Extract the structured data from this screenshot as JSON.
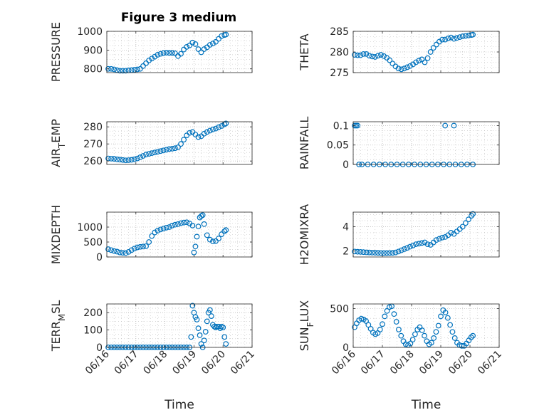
{
  "figure": {
    "title": "Figure 3 medium",
    "accent_color": "#0072bd",
    "axis_color": "#262626",
    "grid_color": "#bdbdbd"
  },
  "chart_data": [
    {
      "type": "scatter",
      "ylabel": "PRESSURE",
      "xlabel": "",
      "xlim": [
        0,
        5
      ],
      "ylim": [
        780,
        1000
      ],
      "yticks": [
        800,
        900,
        1000
      ],
      "ytick_labels": [
        "800",
        "900",
        "1000"
      ],
      "xtick_labels": [],
      "grid": true,
      "x": [
        0.05,
        0.15,
        0.25,
        0.35,
        0.45,
        0.55,
        0.65,
        0.75,
        0.85,
        0.95,
        1.05,
        1.15,
        1.25,
        1.35,
        1.45,
        1.55,
        1.65,
        1.75,
        1.85,
        1.95,
        2.05,
        2.15,
        2.25,
        2.35,
        2.45,
        2.55,
        2.65,
        2.75,
        2.85,
        2.95,
        3.05,
        3.15,
        3.25,
        3.35,
        3.45,
        3.55,
        3.65,
        3.75,
        3.85,
        3.95,
        4.05,
        4.1
      ],
      "y": [
        800,
        800,
        797,
        793,
        790,
        790,
        790,
        792,
        793,
        795,
        797,
        800,
        815,
        830,
        845,
        855,
        865,
        875,
        880,
        884,
        886,
        885,
        885,
        883,
        868,
        880,
        903,
        917,
        925,
        940,
        932,
        905,
        888,
        905,
        915,
        928,
        935,
        944,
        960,
        975,
        980,
        983
      ]
    },
    {
      "type": "scatter",
      "ylabel": "THETA",
      "xlabel": "",
      "xlim": [
        0,
        5
      ],
      "ylim": [
        275,
        285
      ],
      "yticks": [
        275,
        280,
        285
      ],
      "ytick_labels": [
        "275",
        "280",
        "285"
      ],
      "xtick_labels": [],
      "grid": true,
      "x": [
        0.05,
        0.15,
        0.25,
        0.35,
        0.45,
        0.55,
        0.65,
        0.75,
        0.85,
        0.95,
        1.05,
        1.15,
        1.25,
        1.35,
        1.45,
        1.55,
        1.65,
        1.75,
        1.85,
        1.95,
        2.05,
        2.15,
        2.25,
        2.35,
        2.45,
        2.55,
        2.65,
        2.75,
        2.85,
        2.95,
        3.05,
        3.15,
        3.25,
        3.35,
        3.45,
        3.55,
        3.65,
        3.75,
        3.85,
        3.95,
        4.05,
        4.1
      ],
      "y": [
        279.3,
        279.2,
        279.2,
        279.5,
        279.5,
        279.1,
        278.9,
        278.8,
        279.1,
        279.3,
        279.0,
        278.6,
        278.0,
        277.2,
        276.5,
        276.0,
        275.8,
        276.0,
        276.3,
        276.6,
        277.0,
        277.5,
        277.9,
        278.2,
        277.5,
        278.5,
        280.0,
        281.0,
        281.8,
        282.5,
        283.0,
        283.0,
        283.3,
        283.5,
        283.2,
        283.4,
        283.6,
        283.8,
        283.9,
        284.0,
        284.1,
        284.2
      ]
    },
    {
      "type": "scatter",
      "ylabel": "AIR_TEMP",
      "xlabel": "",
      "xlim": [
        0,
        5
      ],
      "ylim": [
        258,
        283
      ],
      "yticks": [
        260,
        270,
        280
      ],
      "ytick_labels": [
        "260",
        "270",
        "280"
      ],
      "xtick_labels": [],
      "grid": true,
      "x": [
        0.05,
        0.15,
        0.25,
        0.35,
        0.45,
        0.55,
        0.65,
        0.75,
        0.85,
        0.95,
        1.05,
        1.15,
        1.25,
        1.35,
        1.45,
        1.55,
        1.65,
        1.75,
        1.85,
        1.95,
        2.05,
        2.15,
        2.25,
        2.35,
        2.45,
        2.55,
        2.65,
        2.75,
        2.85,
        2.95,
        3.05,
        3.15,
        3.25,
        3.35,
        3.45,
        3.55,
        3.65,
        3.75,
        3.85,
        3.95,
        4.05,
        4.1
      ],
      "y": [
        261.5,
        261.4,
        261.3,
        261.0,
        260.8,
        260.6,
        260.4,
        260.5,
        260.7,
        261.0,
        261.5,
        262.2,
        263.0,
        263.8,
        264.2,
        264.6,
        265.0,
        265.4,
        265.8,
        266.2,
        266.6,
        267.0,
        267.2,
        267.5,
        268.0,
        270.0,
        272.5,
        275.0,
        276.5,
        277.0,
        275.5,
        274.0,
        274.5,
        276.0,
        277.0,
        277.8,
        278.5,
        279.0,
        279.8,
        280.5,
        281.5,
        282.0
      ]
    },
    {
      "type": "scatter",
      "ylabel": "RAINFALL",
      "xlabel": "",
      "xlim": [
        0,
        5
      ],
      "ylim": [
        0,
        0.11
      ],
      "yticks": [
        0,
        0.05,
        0.1
      ],
      "ytick_labels": [
        "0",
        "0.05",
        "0.1"
      ],
      "xtick_labels": [],
      "grid": true,
      "x": [
        0.05,
        0.1,
        0.15,
        0.2,
        0.3,
        0.5,
        0.7,
        0.9,
        1.1,
        1.3,
        1.5,
        1.7,
        1.9,
        2.1,
        2.3,
        2.5,
        2.7,
        2.9,
        3.1,
        3.3,
        3.5,
        3.7,
        3.9,
        4.1,
        3.15,
        3.45
      ],
      "y": [
        0.1,
        0.1,
        0.1,
        0,
        0,
        0,
        0,
        0,
        0,
        0,
        0,
        0,
        0,
        0,
        0,
        0,
        0,
        0,
        0,
        0,
        0,
        0,
        0,
        0,
        0.1,
        0.1
      ]
    },
    {
      "type": "scatter",
      "ylabel": "MIXDEPTH",
      "xlabel": "",
      "xlim": [
        0,
        5
      ],
      "ylim": [
        0,
        1500
      ],
      "yticks": [
        0,
        500,
        1000
      ],
      "ytick_labels": [
        "0",
        "500",
        "1000"
      ],
      "xtick_labels": [],
      "grid": true,
      "x": [
        0.05,
        0.15,
        0.25,
        0.35,
        0.45,
        0.55,
        0.65,
        0.75,
        0.85,
        0.95,
        1.05,
        1.15,
        1.25,
        1.35,
        1.45,
        1.55,
        1.65,
        1.75,
        1.85,
        1.95,
        2.05,
        2.15,
        2.25,
        2.35,
        2.45,
        2.55,
        2.65,
        2.75,
        2.85,
        2.95,
        3.0,
        3.05,
        3.1,
        3.15,
        3.2,
        3.25,
        3.3,
        3.35,
        3.45,
        3.55,
        3.65,
        3.75,
        3.85,
        3.95,
        4.05,
        4.1
      ],
      "y": [
        260,
        230,
        200,
        180,
        150,
        140,
        130,
        170,
        230,
        280,
        320,
        340,
        350,
        360,
        500,
        700,
        820,
        880,
        920,
        950,
        980,
        1000,
        1050,
        1080,
        1100,
        1130,
        1150,
        1160,
        1120,
        1050,
        150,
        350,
        680,
        1020,
        1320,
        1370,
        1400,
        1100,
        730,
        580,
        520,
        530,
        620,
        760,
        860,
        900
      ]
    },
    {
      "type": "scatter",
      "ylabel": "H2OMIXRA",
      "xlabel": "",
      "xlim": [
        0,
        5
      ],
      "ylim": [
        1.5,
        5.2
      ],
      "yticks": [
        2,
        4
      ],
      "ytick_labels": [
        "2",
        "4"
      ],
      "xtick_labels": [],
      "grid": true,
      "x": [
        0.05,
        0.15,
        0.25,
        0.35,
        0.45,
        0.55,
        0.65,
        0.75,
        0.85,
        0.95,
        1.05,
        1.15,
        1.25,
        1.35,
        1.45,
        1.55,
        1.65,
        1.75,
        1.85,
        1.95,
        2.05,
        2.15,
        2.25,
        2.35,
        2.45,
        2.55,
        2.65,
        2.75,
        2.85,
        2.95,
        3.05,
        3.15,
        3.25,
        3.35,
        3.45,
        3.55,
        3.65,
        3.75,
        3.85,
        3.95,
        4.05,
        4.1
      ],
      "y": [
        1.95,
        1.93,
        1.92,
        1.9,
        1.88,
        1.87,
        1.86,
        1.85,
        1.84,
        1.83,
        1.82,
        1.82,
        1.83,
        1.84,
        1.87,
        1.95,
        2.05,
        2.15,
        2.25,
        2.35,
        2.45,
        2.55,
        2.6,
        2.65,
        2.7,
        2.55,
        2.5,
        2.7,
        2.9,
        3.0,
        3.1,
        3.15,
        3.3,
        3.5,
        3.4,
        3.6,
        3.8,
        4.0,
        4.3,
        4.6,
        4.9,
        5.05
      ]
    },
    {
      "type": "scatter",
      "ylabel": "TERR_MSL",
      "xlabel": "Time",
      "xlim": [
        0,
        5
      ],
      "ylim": [
        0,
        250
      ],
      "yticks": [
        0,
        100,
        200
      ],
      "ytick_labels": [
        "0",
        "100",
        "200"
      ],
      "xticks": [
        0,
        1,
        2,
        3,
        4,
        5
      ],
      "xtick_labels": [
        "06/16",
        "06/17",
        "06/18",
        "06/19",
        "06/20",
        "06/21"
      ],
      "grid": true,
      "x": [
        0.05,
        0.15,
        0.25,
        0.35,
        0.45,
        0.55,
        0.65,
        0.75,
        0.85,
        0.95,
        1.05,
        1.15,
        1.25,
        1.35,
        1.45,
        1.55,
        1.65,
        1.75,
        1.85,
        1.95,
        2.05,
        2.15,
        2.25,
        2.35,
        2.45,
        2.55,
        2.65,
        2.75,
        2.85,
        2.9,
        2.95,
        3.0,
        3.05,
        3.1,
        3.15,
        3.2,
        3.25,
        3.3,
        3.35,
        3.4,
        3.45,
        3.5,
        3.55,
        3.6,
        3.65,
        3.7,
        3.75,
        3.8,
        3.85,
        3.9,
        3.95,
        4.0,
        4.05,
        4.1
      ],
      "y": [
        0,
        0,
        0,
        0,
        0,
        0,
        0,
        0,
        0,
        0,
        0,
        0,
        0,
        0,
        0,
        0,
        0,
        0,
        0,
        0,
        0,
        0,
        0,
        0,
        0,
        0,
        0,
        0,
        0,
        60,
        240,
        200,
        175,
        160,
        110,
        70,
        20,
        0,
        40,
        90,
        150,
        200,
        215,
        180,
        130,
        120,
        115,
        120,
        120,
        110,
        120,
        115,
        60,
        20
      ]
    },
    {
      "type": "scatter",
      "ylabel": "SUN_FLUX",
      "xlabel": "Time",
      "xlim": [
        0,
        5
      ],
      "ylim": [
        0,
        560
      ],
      "yticks": [
        0,
        500
      ],
      "ytick_labels": [
        "0",
        "500"
      ],
      "xticks": [
        0,
        1,
        2,
        3,
        4,
        5
      ],
      "xtick_labels": [
        "06/16",
        "06/17",
        "06/18",
        "06/19",
        "06/20",
        "06/21"
      ],
      "grid": true,
      "x": [
        0.05,
        0.12,
        0.2,
        0.28,
        0.36,
        0.44,
        0.52,
        0.6,
        0.68,
        0.76,
        0.84,
        0.92,
        1.0,
        1.08,
        1.16,
        1.24,
        1.32,
        1.4,
        1.48,
        1.56,
        1.64,
        1.72,
        1.8,
        1.88,
        1.96,
        2.04,
        2.12,
        2.2,
        2.28,
        2.36,
        2.44,
        2.52,
        2.6,
        2.68,
        2.76,
        2.84,
        2.92,
        3.0,
        3.08,
        3.16,
        3.24,
        3.32,
        3.4,
        3.48,
        3.56,
        3.64,
        3.72,
        3.8,
        3.88,
        3.96,
        4.04,
        4.1
      ],
      "y": [
        260,
        310,
        350,
        370,
        360,
        340,
        290,
        240,
        190,
        170,
        185,
        230,
        300,
        400,
        470,
        520,
        530,
        430,
        330,
        230,
        150,
        80,
        40,
        30,
        50,
        100,
        170,
        230,
        260,
        220,
        150,
        80,
        40,
        60,
        120,
        200,
        280,
        400,
        480,
        450,
        380,
        290,
        200,
        120,
        60,
        30,
        20,
        20,
        50,
        90,
        130,
        150
      ]
    }
  ]
}
